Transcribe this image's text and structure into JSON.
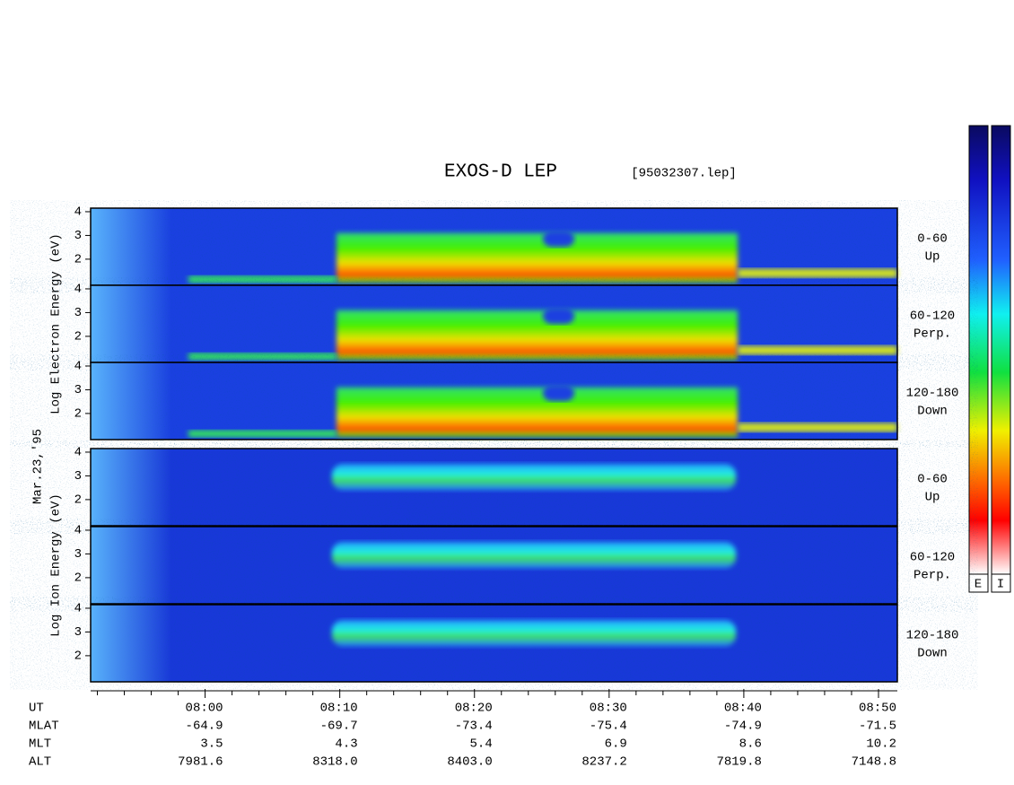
{
  "title": "EXOS-D LEP",
  "file": "[95032307.lep]",
  "date": "Mar.23,'95",
  "electron_label": "Log Electron Energy (eV)",
  "ion_label": "Log Ion Energy (eV)",
  "panels": [
    {
      "range": "0-60",
      "dir": "Up"
    },
    {
      "range": "60-120",
      "dir": "Perp."
    },
    {
      "range": "120-180",
      "dir": "Down"
    },
    {
      "range": "0-60",
      "dir": "Up"
    },
    {
      "range": "60-120",
      "dir": "Perp."
    },
    {
      "range": "120-180",
      "dir": "Down"
    }
  ],
  "ylim": [
    0.9,
    4.15
  ],
  "yticks": [
    2,
    3,
    4
  ],
  "xlim": [
    -8.5,
    51.4
  ],
  "xticks": [
    {
      "value": 0,
      "label": "08:00"
    },
    {
      "value": 10,
      "label": "08:10"
    },
    {
      "value": 20,
      "label": "08:20"
    },
    {
      "value": 30,
      "label": "08:30"
    },
    {
      "value": 40,
      "label": "08:40"
    },
    {
      "value": 50,
      "label": "08:50"
    }
  ],
  "xminorticks": [
    -8,
    -6,
    -4,
    -2,
    2,
    4,
    6,
    8,
    12,
    14,
    16,
    18,
    22,
    24,
    26,
    28,
    32,
    34,
    36,
    38,
    42,
    44,
    46,
    48
  ],
  "ut_label": "UT",
  "ephemeris": [
    {
      "label": "MLAT",
      "values": [
        "-64.9",
        "-69.7",
        "-73.4",
        "-75.4",
        "-74.9",
        "-71.5"
      ]
    },
    {
      "label": "MLT",
      "values": [
        "3.5",
        "4.3",
        "5.4",
        "6.9",
        "8.6",
        "10.2"
      ]
    },
    {
      "label": "ALT",
      "values": [
        "7981.6",
        "8318.0",
        "8403.0",
        "8237.2",
        "7819.8",
        "7148.8"
      ]
    }
  ],
  "colorbars": [
    "E",
    "I"
  ]
}
